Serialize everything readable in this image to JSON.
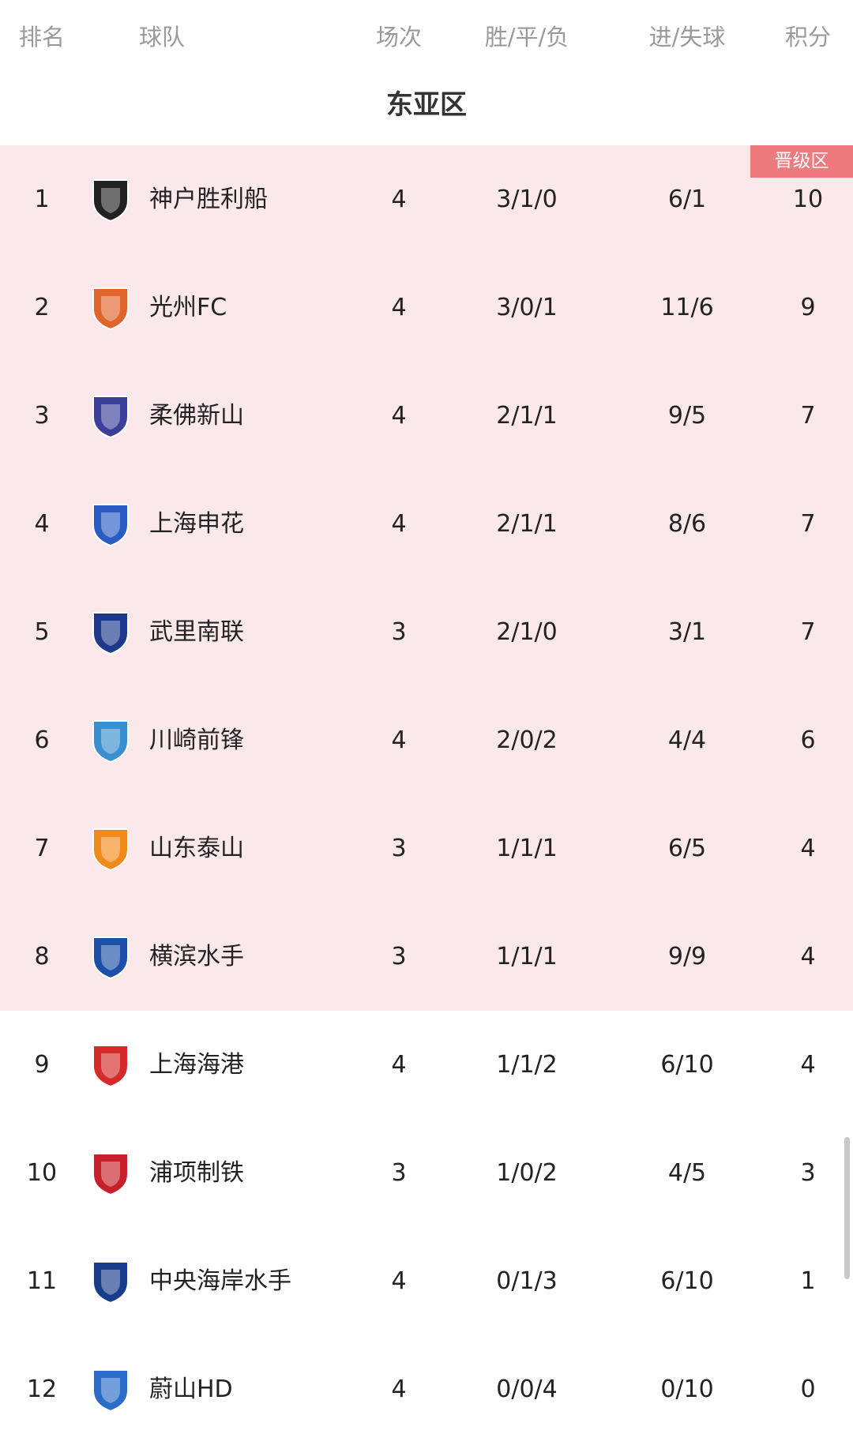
{
  "header": {
    "rank": "排名",
    "team": "球队",
    "played": "场次",
    "wdl": "胜/平/负",
    "goals": "进/失球",
    "points": "积分"
  },
  "group_title": "东亚区",
  "promotion_badge": "晋级区",
  "colors": {
    "promotion_bg": "#fbe8ea",
    "badge": "#ed7b7e"
  },
  "rows": [
    {
      "rank": "1",
      "team": "神户胜利船",
      "played": "4",
      "wdl": "3/1/0",
      "goals": "6/1",
      "points": "10",
      "logo": "vissel-kobe-logo",
      "logo_color": "#222222",
      "promoted": true
    },
    {
      "rank": "2",
      "team": "光州FC",
      "played": "4",
      "wdl": "3/0/1",
      "goals": "11/6",
      "points": "9",
      "logo": "gwangju-fc-logo",
      "logo_color": "#e0652a",
      "promoted": true
    },
    {
      "rank": "3",
      "team": "柔佛新山",
      "played": "4",
      "wdl": "2/1/1",
      "goals": "9/5",
      "points": "7",
      "logo": "johor-darul-tazim-logo",
      "logo_color": "#3b3f9a",
      "promoted": true
    },
    {
      "rank": "4",
      "team": "上海申花",
      "played": "4",
      "wdl": "2/1/1",
      "goals": "8/6",
      "points": "7",
      "logo": "shanghai-shenhua-logo",
      "logo_color": "#2b5cc4",
      "promoted": true
    },
    {
      "rank": "5",
      "team": "武里南联",
      "played": "3",
      "wdl": "2/1/0",
      "goals": "3/1",
      "points": "7",
      "logo": "buriram-united-logo",
      "logo_color": "#1d3a8a",
      "promoted": true
    },
    {
      "rank": "6",
      "team": "川崎前锋",
      "played": "4",
      "wdl": "2/0/2",
      "goals": "4/4",
      "points": "6",
      "logo": "kawasaki-frontale-logo",
      "logo_color": "#3a8fd0",
      "promoted": true
    },
    {
      "rank": "7",
      "team": "山东泰山",
      "played": "3",
      "wdl": "1/1/1",
      "goals": "6/5",
      "points": "4",
      "logo": "shandong-taishan-logo",
      "logo_color": "#f08a1c",
      "promoted": true
    },
    {
      "rank": "8",
      "team": "横滨水手",
      "played": "3",
      "wdl": "1/1/1",
      "goals": "9/9",
      "points": "4",
      "logo": "yokohama-marinos-logo",
      "logo_color": "#1e4fa8",
      "promoted": true
    },
    {
      "rank": "9",
      "team": "上海海港",
      "played": "4",
      "wdl": "1/1/2",
      "goals": "6/10",
      "points": "4",
      "logo": "shanghai-port-logo",
      "logo_color": "#d42a2a",
      "promoted": false
    },
    {
      "rank": "10",
      "team": "浦项制铁",
      "played": "3",
      "wdl": "1/0/2",
      "goals": "4/5",
      "points": "3",
      "logo": "pohang-steelers-logo",
      "logo_color": "#c8202a",
      "promoted": false
    },
    {
      "rank": "11",
      "team": "中央海岸水手",
      "played": "4",
      "wdl": "0/1/3",
      "goals": "6/10",
      "points": "1",
      "logo": "central-coast-mariners-logo",
      "logo_color": "#1a3c8c",
      "promoted": false
    },
    {
      "rank": "12",
      "team": "蔚山HD",
      "played": "4",
      "wdl": "0/0/4",
      "goals": "0/10",
      "points": "0",
      "logo": "ulsan-hd-logo",
      "logo_color": "#2a6cc8",
      "promoted": false
    }
  ]
}
